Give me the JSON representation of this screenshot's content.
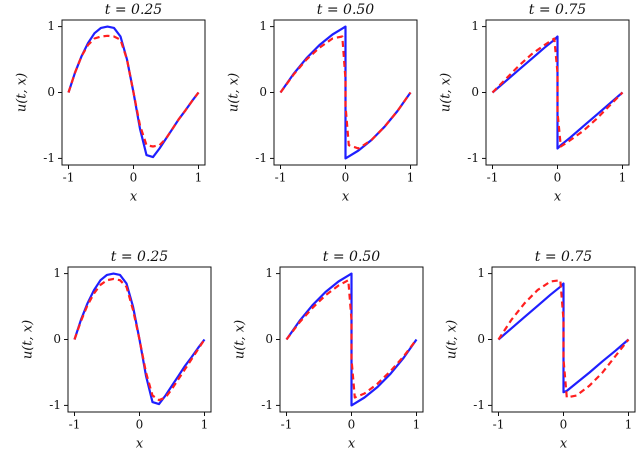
{
  "chart_data": [
    {
      "type": "line",
      "title": "t = 0.25",
      "xlabel": "x",
      "ylabel": "u(t, x)",
      "x": [
        -1,
        -0.9,
        -0.8,
        -0.7,
        -0.6,
        -0.5,
        -0.4,
        -0.3,
        -0.2,
        -0.1,
        0,
        0.1,
        0.2,
        0.3,
        0.4,
        0.5,
        0.6,
        0.7,
        0.8,
        0.9,
        1
      ],
      "series": [
        {
          "color": "#1f1fff",
          "dash": false,
          "values": [
            0,
            0.3,
            0.55,
            0.75,
            0.9,
            0.98,
            1.0,
            0.98,
            0.85,
            0.5,
            0,
            -0.55,
            -0.95,
            -0.98,
            -0.85,
            -0.7,
            -0.55,
            -0.4,
            -0.27,
            -0.13,
            0
          ]
        },
        {
          "color": "#ff1f1f",
          "dash": true,
          "values": [
            0,
            0.3,
            0.55,
            0.72,
            0.82,
            0.85,
            0.86,
            0.85,
            0.8,
            0.5,
            0,
            -0.5,
            -0.8,
            -0.82,
            -0.8,
            -0.7,
            -0.55,
            -0.4,
            -0.27,
            -0.13,
            0
          ]
        }
      ],
      "xlim": [
        -1.1,
        1.1
      ],
      "xticks": [
        -1,
        0,
        1
      ],
      "ylim": [
        -1.1,
        1.1
      ],
      "yticks": [
        -1,
        0,
        1
      ]
    },
    {
      "type": "line",
      "title": "t = 0.50",
      "xlabel": "x",
      "ylabel": "u(t, x)",
      "x": [
        -1,
        -0.8,
        -0.6,
        -0.4,
        -0.2,
        -0.05,
        0,
        0,
        0.05,
        0.2,
        0.4,
        0.6,
        0.8,
        1
      ],
      "series": [
        {
          "color": "#1f1fff",
          "dash": false,
          "values": [
            0,
            0.28,
            0.52,
            0.72,
            0.88,
            0.97,
            1,
            -1,
            -0.97,
            -0.88,
            -0.72,
            -0.52,
            -0.28,
            0
          ]
        },
        {
          "color": "#ff1f1f",
          "dash": true,
          "values": [
            0,
            0.27,
            0.5,
            0.68,
            0.82,
            0.85,
            0.2,
            -0.2,
            -0.8,
            -0.85,
            -0.72,
            -0.52,
            -0.28,
            0
          ]
        }
      ],
      "xlim": [
        -1.1,
        1.1
      ],
      "xticks": [
        -1,
        0,
        1
      ],
      "ylim": [
        -1.1,
        1.1
      ],
      "yticks": [
        -1,
        0,
        1
      ]
    },
    {
      "type": "line",
      "title": "t = 0.75",
      "xlabel": "x",
      "ylabel": "u(t, x)",
      "x": [
        -1,
        -0.8,
        -0.6,
        -0.4,
        -0.2,
        -0.05,
        0,
        0,
        0.05,
        0.2,
        0.4,
        0.6,
        0.8,
        1
      ],
      "series": [
        {
          "color": "#1f1fff",
          "dash": false,
          "values": [
            0,
            0.17,
            0.34,
            0.51,
            0.68,
            0.8,
            0.85,
            -0.85,
            -0.8,
            -0.68,
            -0.51,
            -0.34,
            -0.17,
            0
          ]
        },
        {
          "color": "#ff1f1f",
          "dash": true,
          "values": [
            0,
            0.2,
            0.4,
            0.58,
            0.72,
            0.82,
            0.3,
            -0.3,
            -0.82,
            -0.72,
            -0.58,
            -0.4,
            -0.2,
            0
          ]
        }
      ],
      "xlim": [
        -1.1,
        1.1
      ],
      "xticks": [
        -1,
        0,
        1
      ],
      "ylim": [
        -1.1,
        1.1
      ],
      "yticks": [
        -1,
        0,
        1
      ]
    },
    {
      "type": "line",
      "title": "t = 0.25",
      "xlabel": "x",
      "ylabel": "u(t, x)",
      "x": [
        -1,
        -0.9,
        -0.8,
        -0.7,
        -0.6,
        -0.5,
        -0.4,
        -0.3,
        -0.2,
        -0.1,
        0,
        0.1,
        0.2,
        0.3,
        0.4,
        0.5,
        0.6,
        0.7,
        0.8,
        0.9,
        1
      ],
      "series": [
        {
          "color": "#1f1fff",
          "dash": false,
          "values": [
            0,
            0.3,
            0.55,
            0.75,
            0.9,
            0.98,
            1.0,
            0.98,
            0.85,
            0.5,
            0,
            -0.55,
            -0.95,
            -0.98,
            -0.85,
            -0.7,
            -0.55,
            -0.4,
            -0.27,
            -0.13,
            0
          ]
        },
        {
          "color": "#ff1f1f",
          "dash": true,
          "values": [
            0,
            0.28,
            0.52,
            0.7,
            0.83,
            0.9,
            0.92,
            0.9,
            0.8,
            0.45,
            0,
            -0.5,
            -0.85,
            -0.92,
            -0.88,
            -0.75,
            -0.6,
            -0.45,
            -0.3,
            -0.15,
            0
          ]
        }
      ],
      "xlim": [
        -1.1,
        1.1
      ],
      "xticks": [
        -1,
        0,
        1
      ],
      "ylim": [
        -1.1,
        1.1
      ],
      "yticks": [
        -1,
        0,
        1
      ]
    },
    {
      "type": "line",
      "title": "t = 0.50",
      "xlabel": "x",
      "ylabel": "u(t, x)",
      "x": [
        -1,
        -0.8,
        -0.6,
        -0.4,
        -0.2,
        -0.05,
        0,
        0,
        0.05,
        0.2,
        0.4,
        0.6,
        0.8,
        1
      ],
      "series": [
        {
          "color": "#1f1fff",
          "dash": false,
          "values": [
            0,
            0.28,
            0.52,
            0.72,
            0.88,
            0.97,
            1,
            -1,
            -0.97,
            -0.88,
            -0.72,
            -0.52,
            -0.28,
            0
          ]
        },
        {
          "color": "#ff1f1f",
          "dash": true,
          "values": [
            0,
            0.26,
            0.48,
            0.67,
            0.82,
            0.9,
            0.3,
            -0.3,
            -0.88,
            -0.82,
            -0.67,
            -0.48,
            -0.26,
            0
          ]
        }
      ],
      "xlim": [
        -1.1,
        1.1
      ],
      "xticks": [
        -1,
        0,
        1
      ],
      "ylim": [
        -1.1,
        1.1
      ],
      "yticks": [
        -1,
        0,
        1
      ]
    },
    {
      "type": "line",
      "title": "t = 0.75",
      "xlabel": "x",
      "ylabel": "u(t, x)",
      "x": [
        -1,
        -0.8,
        -0.6,
        -0.4,
        -0.2,
        -0.05,
        0,
        0,
        0.05,
        0.2,
        0.4,
        0.6,
        0.8,
        1
      ],
      "series": [
        {
          "color": "#1f1fff",
          "dash": false,
          "values": [
            0,
            0.17,
            0.34,
            0.51,
            0.68,
            0.8,
            0.85,
            -0.8,
            -0.78,
            -0.66,
            -0.5,
            -0.33,
            -0.17,
            0
          ]
        },
        {
          "color": "#ff1f1f",
          "dash": true,
          "values": [
            0,
            0.3,
            0.55,
            0.75,
            0.88,
            0.9,
            0.3,
            -0.3,
            -0.88,
            -0.85,
            -0.7,
            -0.5,
            -0.25,
            0
          ]
        }
      ],
      "xlim": [
        -1.1,
        1.1
      ],
      "xticks": [
        -1,
        0,
        1
      ],
      "ylim": [
        -1.1,
        1.1
      ],
      "yticks": [
        -1,
        0,
        1
      ]
    }
  ]
}
